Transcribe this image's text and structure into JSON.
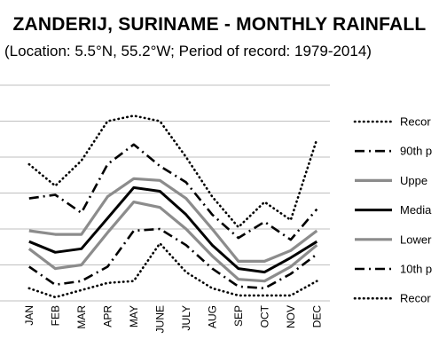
{
  "chart_data": {
    "type": "line",
    "title": "ZANDERIJ, SURINAME - MONTHLY RAINFALL",
    "subtitle": "(Location: 5.5°N, 55.2°W; Period of record: 1979-2014)",
    "categories": [
      "JAN",
      "FEB",
      "MAR",
      "APR",
      "MAY",
      "JUNE",
      "JULY",
      "AUG",
      "SEP",
      "OCT",
      "NOV",
      "DEC"
    ],
    "ylim": [
      0,
      6
    ],
    "grid": true,
    "legend_position": "right",
    "series": [
      {
        "name": "Recor",
        "style": "dotted",
        "color": "#000000",
        "values": [
          3.8,
          3.2,
          3.9,
          5.0,
          5.15,
          5.0,
          4.0,
          2.9,
          2.05,
          2.75,
          2.25,
          4.5
        ]
      },
      {
        "name": "90th p",
        "style": "dashdot",
        "color": "#000000",
        "values": [
          2.85,
          2.95,
          2.45,
          3.8,
          4.35,
          3.75,
          3.3,
          2.4,
          1.75,
          2.2,
          1.7,
          2.55
        ]
      },
      {
        "name": "Uppe",
        "style": "solid",
        "color": "#8c8c8c",
        "values": [
          1.95,
          1.85,
          1.85,
          2.9,
          3.4,
          3.35,
          2.85,
          2.0,
          1.1,
          1.1,
          1.4,
          1.95
        ]
      },
      {
        "name": "Media",
        "style": "solid",
        "color": "#000000",
        "values": [
          1.65,
          1.35,
          1.45,
          2.3,
          3.15,
          3.05,
          2.4,
          1.55,
          0.9,
          0.8,
          1.2,
          1.65
        ]
      },
      {
        "name": "Lower",
        "style": "solid",
        "color": "#8c8c8c",
        "values": [
          1.45,
          0.9,
          1.0,
          1.9,
          2.75,
          2.6,
          2.0,
          1.25,
          0.6,
          0.55,
          0.95,
          1.55
        ]
      },
      {
        "name": "10th p",
        "style": "dashdot",
        "color": "#000000",
        "values": [
          0.95,
          0.45,
          0.55,
          0.95,
          1.95,
          2.0,
          1.55,
          0.9,
          0.4,
          0.35,
          0.75,
          1.3
        ]
      },
      {
        "name": "Recor",
        "style": "dotted",
        "color": "#000000",
        "values": [
          0.35,
          0.1,
          0.3,
          0.5,
          0.55,
          1.6,
          0.8,
          0.35,
          0.15,
          0.15,
          0.15,
          0.55
        ]
      }
    ]
  }
}
